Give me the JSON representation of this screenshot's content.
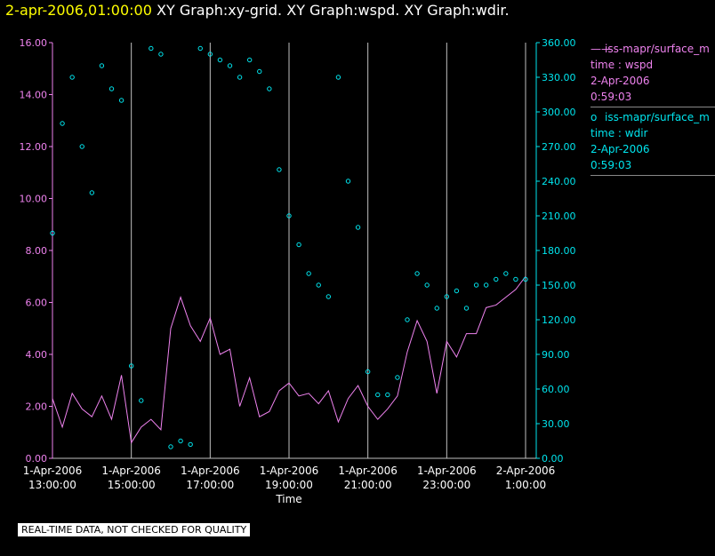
{
  "header": {
    "timestamp": "2-apr-2006,01:00:00",
    "title": "XY Graph:xy-grid.  XY Graph:wspd.  XY Graph:wdir."
  },
  "legend": {
    "wspd": {
      "symbol": "——",
      "name": "iss-mapr/surface_m",
      "field": "time : wspd",
      "date": "2-Apr-2006",
      "time": "0:59:03"
    },
    "wdir": {
      "symbol": "o",
      "name": "iss-mapr/surface_m",
      "field": "time : wdir",
      "date": "2-Apr-2006",
      "time": "0:59:03"
    }
  },
  "disclaimer": "REAL-TIME DATA, NOT CHECKED FOR QUALITY",
  "colors": {
    "background": "#000000",
    "wspd": "#ee82ee",
    "wdir": "#00e5ee",
    "grid": "#c0c0c0",
    "axis_text": "#ffffff"
  },
  "chart_data": {
    "type": "line",
    "xlabel": "Time",
    "x_ticks": [
      {
        "hour": 0,
        "line1": "1-Apr-2006",
        "line2": "13:00:00"
      },
      {
        "hour": 2,
        "line1": "1-Apr-2006",
        "line2": "15:00:00"
      },
      {
        "hour": 4,
        "line1": "1-Apr-2006",
        "line2": "17:00:00"
      },
      {
        "hour": 6,
        "line1": "1-Apr-2006",
        "line2": "19:00:00"
      },
      {
        "hour": 8,
        "line1": "1-Apr-2006",
        "line2": "21:00:00"
      },
      {
        "hour": 10,
        "line1": "1-Apr-2006",
        "line2": "23:00:00"
      },
      {
        "hour": 12,
        "line1": "2-Apr-2006",
        "line2": "1:00:00"
      }
    ],
    "xlim_hours": [
      0,
      12
    ],
    "y_left": {
      "ylim": [
        0,
        16
      ],
      "ticks": [
        "0.00",
        "2.00",
        "4.00",
        "6.00",
        "8.00",
        "10.00",
        "12.00",
        "14.00",
        "16.00"
      ]
    },
    "y_right": {
      "ylim": [
        0,
        360
      ],
      "ticks": [
        "0.00",
        "30.00",
        "60.00",
        "90.00",
        "120.00",
        "150.00",
        "180.00",
        "210.00",
        "240.00",
        "270.00",
        "300.00",
        "330.00",
        "360.00"
      ]
    },
    "grid": "vertical",
    "series": [
      {
        "name": "iss-mapr/surface_m time : wspd",
        "axis": "left",
        "style": "line",
        "x_hours": [
          0.0,
          0.25,
          0.5,
          0.75,
          1.0,
          1.25,
          1.5,
          1.75,
          2.0,
          2.25,
          2.5,
          2.75,
          3.0,
          3.25,
          3.5,
          3.75,
          4.0,
          4.25,
          4.5,
          4.75,
          5.0,
          5.25,
          5.5,
          5.75,
          6.0,
          6.25,
          6.5,
          6.75,
          7.0,
          7.25,
          7.5,
          7.75,
          8.0,
          8.25,
          8.5,
          8.75,
          9.0,
          9.25,
          9.5,
          9.75,
          10.0,
          10.25,
          10.5,
          10.75,
          11.0,
          11.25,
          11.5,
          11.75,
          12.0
        ],
        "values": [
          2.3,
          1.2,
          2.5,
          1.9,
          1.6,
          2.4,
          1.5,
          3.2,
          0.6,
          1.2,
          1.5,
          1.1,
          5.0,
          6.2,
          5.1,
          4.5,
          5.4,
          4.0,
          4.2,
          2.0,
          3.1,
          1.6,
          1.8,
          2.6,
          2.9,
          2.4,
          2.5,
          2.1,
          2.6,
          1.4,
          2.3,
          2.8,
          2.0,
          1.5,
          1.9,
          2.4,
          4.1,
          5.3,
          4.5,
          2.5,
          4.5,
          3.9,
          4.8,
          4.8,
          5.8,
          5.9,
          6.2,
          6.5,
          7.0
        ]
      },
      {
        "name": "iss-mapr/surface_m time : wdir",
        "axis": "right",
        "style": "markers",
        "x_hours": [
          0.0,
          0.25,
          0.5,
          0.75,
          1.0,
          1.25,
          1.5,
          1.75,
          2.0,
          2.25,
          2.5,
          2.75,
          3.0,
          3.25,
          3.5,
          3.75,
          4.0,
          4.25,
          4.5,
          4.75,
          5.0,
          5.25,
          5.5,
          5.75,
          6.0,
          6.25,
          6.5,
          6.75,
          7.0,
          7.25,
          7.5,
          7.75,
          8.0,
          8.25,
          8.5,
          8.75,
          9.0,
          9.25,
          9.5,
          9.75,
          10.0,
          10.25,
          10.5,
          10.75,
          11.0,
          11.25,
          11.5,
          11.75,
          12.0
        ],
        "values": [
          195,
          290,
          330,
          270,
          230,
          340,
          320,
          310,
          80,
          50,
          355,
          350,
          10,
          15,
          12,
          355,
          350,
          345,
          340,
          330,
          345,
          335,
          320,
          250,
          210,
          185,
          160,
          150,
          140,
          330,
          240,
          200,
          75,
          55,
          55,
          70,
          120,
          160,
          150,
          130,
          140,
          145,
          130,
          150,
          150,
          155,
          160,
          155,
          155
        ]
      }
    ]
  }
}
